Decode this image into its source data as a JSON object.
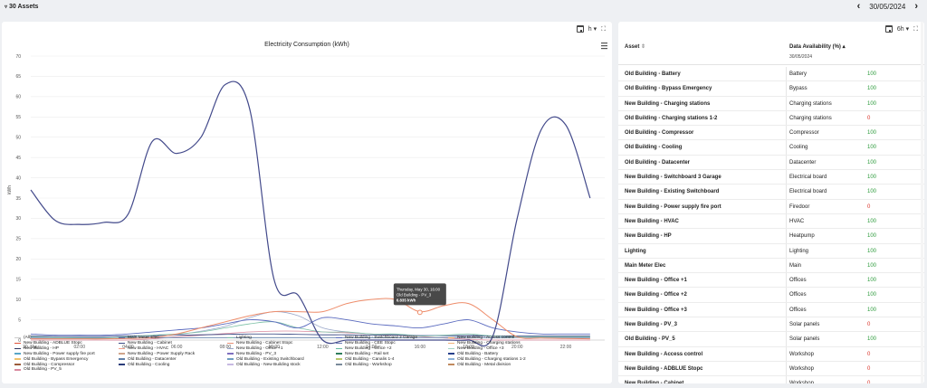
{
  "topbar": {
    "assets_label": "30 Assets",
    "date": "30/05/2024"
  },
  "chart_tools": {
    "interval": "h"
  },
  "table_tools": {
    "interval": "6h"
  },
  "table": {
    "col_asset": "Asset",
    "col_availability": "Data Availability (%)",
    "col_date": "30/05/2024",
    "rows": [
      {
        "asset": "Old Building - Battery",
        "category": "Battery",
        "value": "100",
        "ok": true
      },
      {
        "asset": "Old Building - Bypass Emergency",
        "category": "Bypass",
        "value": "100",
        "ok": true
      },
      {
        "asset": "New Building - Charging stations",
        "category": "Charging stations",
        "value": "100",
        "ok": true
      },
      {
        "asset": "Old Building - Charging stations 1-2",
        "category": "Charging stations",
        "value": "0",
        "ok": false
      },
      {
        "asset": "Old Building - Compressor",
        "category": "Compressor",
        "value": "100",
        "ok": true
      },
      {
        "asset": "Old Building - Cooling",
        "category": "Cooling",
        "value": "100",
        "ok": true
      },
      {
        "asset": "Old Building - Datacenter",
        "category": "Datacenter",
        "value": "100",
        "ok": true
      },
      {
        "asset": "New Building - Switchboard 3 Garage",
        "category": "Electrical board",
        "value": "100",
        "ok": true
      },
      {
        "asset": "New Building - Existing Switchboard",
        "category": "Electrical board",
        "value": "100",
        "ok": true
      },
      {
        "asset": "New Building - Power supply fire port",
        "category": "Firedoor",
        "value": "0",
        "ok": false
      },
      {
        "asset": "New Building - HVAC",
        "category": "HVAC",
        "value": "100",
        "ok": true
      },
      {
        "asset": "New Building - HP",
        "category": "Heatpump",
        "value": "100",
        "ok": true
      },
      {
        "asset": "Lighting",
        "category": "Lighting",
        "value": "100",
        "ok": true
      },
      {
        "asset": "Main Meter Elec",
        "category": "Main",
        "value": "100",
        "ok": true
      },
      {
        "asset": "New Building - Office +1",
        "category": "Offices",
        "value": "100",
        "ok": true
      },
      {
        "asset": "New Building - Office +2",
        "category": "Offices",
        "value": "100",
        "ok": true
      },
      {
        "asset": "New Building - Office +3",
        "category": "Offices",
        "value": "100",
        "ok": true
      },
      {
        "asset": "New Building - PV_3",
        "category": "Solar panels",
        "value": "0",
        "ok": false
      },
      {
        "asset": "Old Building - PV_5",
        "category": "Solar panels",
        "value": "100",
        "ok": true
      },
      {
        "asset": "New Building - Access control",
        "category": "Workshop",
        "value": "0",
        "ok": false
      },
      {
        "asset": "New Building - ADBLUE Stopc",
        "category": "Workshop",
        "value": "0",
        "ok": false
      },
      {
        "asset": "New Building - Cabinet",
        "category": "Workshop",
        "value": "0",
        "ok": false
      }
    ]
  },
  "chart_data": {
    "type": "line",
    "title": "Electricity Consumption (kWh)",
    "ylabel": "kWh",
    "xlabel": "",
    "ylim": [
      0,
      70
    ],
    "yticks": [
      "0",
      "5",
      "10",
      "15",
      "20",
      "25",
      "30",
      "35",
      "40",
      "45",
      "50",
      "55",
      "60",
      "65",
      "70"
    ],
    "xlim": [
      0,
      23.6
    ],
    "xticks": [
      {
        "x": 0,
        "label": "30. May"
      },
      {
        "x": 2,
        "label": "02:00"
      },
      {
        "x": 4,
        "label": "04:00"
      },
      {
        "x": 6,
        "label": "06:00"
      },
      {
        "x": 8,
        "label": "08:00"
      },
      {
        "x": 10,
        "label": "10:00"
      },
      {
        "x": 12,
        "label": "12:00"
      },
      {
        "x": 14,
        "label": "14:00"
      },
      {
        "x": 16,
        "label": "16:00"
      },
      {
        "x": 18,
        "label": "18:00"
      },
      {
        "x": 20,
        "label": "20:00"
      },
      {
        "x": 22,
        "label": "22:00"
      }
    ],
    "x": [
      0,
      1,
      2,
      3,
      4,
      5,
      6,
      7,
      8,
      9,
      10,
      11,
      12,
      13,
      14,
      15,
      16,
      17,
      18,
      19,
      20,
      21,
      22,
      23
    ],
    "series": [
      {
        "name": "Main Meter Elec",
        "color": "#434a8b",
        "width": 1.2,
        "values": [
          37,
          29.5,
          28.5,
          29,
          31,
          49,
          46,
          50,
          63,
          57,
          15,
          11,
          0,
          0,
          0,
          0,
          0,
          0,
          0,
          1,
          30,
          52,
          53,
          35
        ]
      },
      {
        "name": "New Building - ADBLUE Stopc",
        "color": "#ee8d6b",
        "width": 1,
        "values": [
          0.3,
          0.3,
          0.3,
          0.3,
          0.4,
          0.6,
          1.5,
          3,
          4.5,
          6,
          7,
          7,
          7,
          9,
          10,
          10,
          7,
          8.5,
          9,
          5,
          0.8,
          0.5,
          0.4,
          0.3
        ]
      },
      {
        "name": "New Building - Switchboard 3 Garage",
        "color": "#5b6bbf",
        "width": 0.9,
        "values": [
          1.5,
          1.2,
          1.2,
          1.2,
          1.5,
          2,
          2.5,
          3,
          4,
          5,
          4.5,
          3,
          5.5,
          5,
          4,
          3.5,
          3,
          4,
          5,
          3,
          2,
          1.5,
          1.5,
          1.5
        ]
      },
      {
        "name": "Lighting",
        "color": "#7cc0a6",
        "width": 0.8,
        "values": [
          0.8,
          0.6,
          0.5,
          0.5,
          0.8,
          1.2,
          1.5,
          2,
          3,
          4,
          4.5,
          3,
          2,
          2,
          1.5,
          1.5,
          1,
          1.2,
          1.5,
          1,
          0.8,
          0.8,
          0.8,
          0.8
        ]
      },
      {
        "name": "New Building - Office +1",
        "color": "#9aa7c9",
        "width": 0.8,
        "values": [
          0.5,
          0.4,
          0.4,
          0.4,
          0.5,
          0.9,
          1.3,
          2.2,
          3.4,
          5.5,
          7,
          6,
          3,
          2,
          1.5,
          1.4,
          1.2,
          1.2,
          1.3,
          1,
          0.6,
          0.5,
          0.5,
          0.5
        ]
      },
      {
        "name": "Old Building - Cooling",
        "color": "#2a3c7a",
        "width": 0.8,
        "values": [
          1,
          0.9,
          0.9,
          0.9,
          1,
          1.1,
          1.2,
          1.3,
          1.4,
          1.5,
          1.5,
          1.4,
          1.3,
          1.3,
          1.2,
          1.2,
          1.1,
          1.1,
          1,
          1,
          1,
          1,
          1,
          1
        ]
      },
      {
        "name": "Old Building - Datacenter",
        "color": "#5f7fa8",
        "width": 0.8,
        "values": [
          0.6,
          0.6,
          0.6,
          0.6,
          0.6,
          0.6,
          0.6,
          0.6,
          0.6,
          0.6,
          0.6,
          0.6,
          0.6,
          0.6,
          0.6,
          0.6,
          0.6,
          0.6,
          0.6,
          0.6,
          0.6,
          0.6,
          0.6,
          0.6
        ]
      },
      {
        "name": "Old Building - PV_5",
        "color": "#d98a9f",
        "width": 0.8,
        "values": [
          0,
          0,
          0,
          0,
          0,
          0.3,
          0.8,
          1.2,
          1.6,
          2,
          2.2,
          2.2,
          2,
          1.8,
          1.5,
          1.2,
          0.9,
          0.5,
          0.2,
          0,
          0,
          0,
          0,
          0
        ]
      }
    ],
    "tooltip": {
      "line1": "Thursday, May 30, 16:00",
      "line2": "Old Building - PV_3",
      "line3": "6.835 kWh",
      "x": 16,
      "y": 6.835
    },
    "legend": [
      {
        "name": "(All)",
        "color": "#cccccc"
      },
      {
        "name": "Main Meter Elec",
        "color": "#434a8b"
      },
      {
        "name": "Lighting",
        "color": "#7cc0a6"
      },
      {
        "name": "New Building - Switchboard 3 Garage",
        "color": "#5b6bbf"
      },
      {
        "name": "New Building - Access control",
        "color": "#e8a15f"
      },
      {
        "name": "New Building - ADBLUE Stopc",
        "color": "#e0523a"
      },
      {
        "name": "New Building - Cabinet",
        "color": "#3b4c86"
      },
      {
        "name": "New Building - Cabinet Stopc",
        "color": "#e98f75"
      },
      {
        "name": "New Building - CEE Stopc",
        "color": "#6e7db9"
      },
      {
        "name": "New Building - Charging stations",
        "color": "#f1b37a"
      },
      {
        "name": "New Building - HP",
        "color": "#2f3560"
      },
      {
        "name": "New Building - HVAC",
        "color": "#f2a08c"
      },
      {
        "name": "New Building - Office +1",
        "color": "#9aa7c9"
      },
      {
        "name": "New Building - Office +2",
        "color": "#63b8a0"
      },
      {
        "name": "New Building - Office +3",
        "color": "#a4d4c4"
      },
      {
        "name": "New Building - Power supply fire port",
        "color": "#58a6c8"
      },
      {
        "name": "New Building - Power Supply Rack",
        "color": "#d0a58b"
      },
      {
        "name": "New Building - PV_3",
        "color": "#7f6fbf"
      },
      {
        "name": "New Building - Rail set",
        "color": "#2e7d5b"
      },
      {
        "name": "Old Building - Battery",
        "color": "#27408b"
      },
      {
        "name": "Old Building - Bypass Emergency",
        "color": "#f0c36b"
      },
      {
        "name": "Old Building - Datacenter",
        "color": "#5f7fa8"
      },
      {
        "name": "Old Building - Existing Switchboard",
        "color": "#6f9dc0"
      },
      {
        "name": "Old Building - Canalis 1-4",
        "color": "#b9c76a"
      },
      {
        "name": "Old Building - Charging stations 1-2",
        "color": "#8bb0d8"
      },
      {
        "name": "Old Building - Compressor",
        "color": "#9c5c3a"
      },
      {
        "name": "Old Building - Cooling",
        "color": "#2a3c7a"
      },
      {
        "name": "Old Building - New Building stock",
        "color": "#c7b9e2"
      },
      {
        "name": "Old Building - Workshop",
        "color": "#7a8a9a"
      },
      {
        "name": "Old Building - Metal division",
        "color": "#c08a5e"
      },
      {
        "name": "Old Building - PV_5",
        "color": "#d98a9f"
      }
    ]
  }
}
